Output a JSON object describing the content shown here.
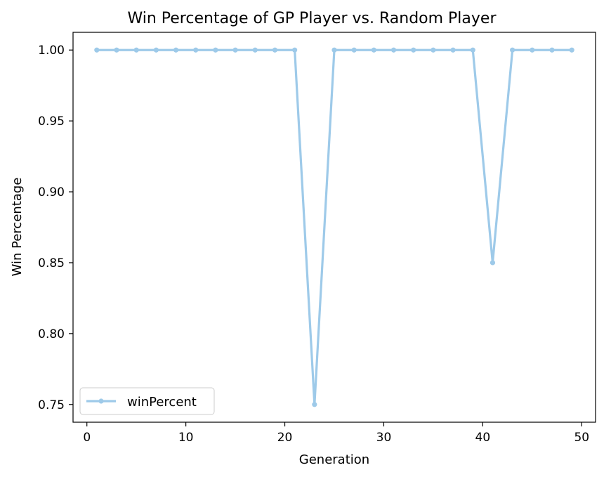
{
  "chart_data": {
    "type": "line",
    "title": "Win Percentage of GP Player vs. Random Player",
    "xlabel": "Generation",
    "ylabel": "Win Percentage",
    "xlim": [
      -1.4,
      51.4
    ],
    "ylim": [
      0.7375,
      1.0125
    ],
    "xticks": [
      0,
      10,
      20,
      30,
      40,
      50
    ],
    "xtick_labels": [
      "0",
      "10",
      "20",
      "30",
      "40",
      "50"
    ],
    "yticks": [
      0.75,
      0.8,
      0.85,
      0.9,
      0.95,
      1.0
    ],
    "ytick_labels": [
      "0.75",
      "0.80",
      "0.85",
      "0.90",
      "0.95",
      "1.00"
    ],
    "grid": false,
    "legend_position": "lower-left",
    "series": [
      {
        "name": "winPercent",
        "color": "#9ecae9",
        "marker": "circle",
        "x": [
          1,
          3,
          5,
          7,
          9,
          11,
          13,
          15,
          17,
          19,
          21,
          23,
          25,
          27,
          29,
          31,
          33,
          35,
          37,
          39,
          41,
          43,
          45,
          47,
          49
        ],
        "y": [
          1.0,
          1.0,
          1.0,
          1.0,
          1.0,
          1.0,
          1.0,
          1.0,
          1.0,
          1.0,
          1.0,
          0.75,
          1.0,
          1.0,
          1.0,
          1.0,
          1.0,
          1.0,
          1.0,
          1.0,
          0.85,
          1.0,
          1.0,
          1.0,
          1.0
        ]
      }
    ]
  }
}
